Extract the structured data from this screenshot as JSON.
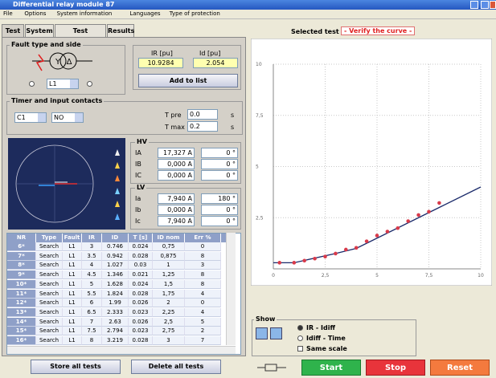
{
  "window": {
    "title": "Differential relay module 87"
  },
  "menu": [
    "File",
    "Options",
    "System information",
    "Languages",
    "Type of protection"
  ],
  "tabs": [
    "Test",
    "System",
    "Test Selection",
    "Results"
  ],
  "fault": {
    "title": "Fault type and side",
    "phase": "L1",
    "ir_label": "IR [pu]",
    "id_label": "Id [pu]",
    "ir_value": "10.9284",
    "id_value": "2.054",
    "add_button": "Add to list"
  },
  "timer": {
    "title": "Timer and input contacts",
    "contact": "C1",
    "contact_type": "NO",
    "tpre_label": "T pre",
    "tpre_value": "0.0",
    "tpre_unit": "s",
    "tmax_label": "T max",
    "tmax_value": "0.2",
    "tmax_unit": "s"
  },
  "hv": {
    "title": "HV",
    "rows": [
      [
        "IA",
        "17,327 A",
        "0 °"
      ],
      [
        "IB",
        "0,000 A",
        "0 °"
      ],
      [
        "IC",
        "0,000 A",
        "0 °"
      ]
    ]
  },
  "lv": {
    "title": "LV",
    "rows": [
      [
        "Ia",
        "7,940 A",
        "180 °"
      ],
      [
        "Ib",
        "0,000 A",
        "0 °"
      ],
      [
        "Ic",
        "7,940 A",
        "0 °"
      ]
    ]
  },
  "table": {
    "header": [
      "NR",
      "Type",
      "Fault",
      "IR",
      "ID",
      "T [s]",
      "ID nom",
      "Err %"
    ],
    "rows": [
      [
        "6*",
        "Search",
        "L1",
        "3",
        "0.746",
        "0.024",
        "0,75",
        "0"
      ],
      [
        "7*",
        "Search",
        "L1",
        "3.5",
        "0.942",
        "0.028",
        "0,875",
        "8"
      ],
      [
        "8*",
        "Search",
        "L1",
        "4",
        "1.027",
        "0.03",
        "1",
        "3"
      ],
      [
        "9*",
        "Search",
        "L1",
        "4.5",
        "1.346",
        "0.021",
        "1,25",
        "8"
      ],
      [
        "10*",
        "Search",
        "L1",
        "5",
        "1.628",
        "0.024",
        "1,5",
        "8"
      ],
      [
        "11*",
        "Search",
        "L1",
        "5.5",
        "1.824",
        "0.028",
        "1,75",
        "4"
      ],
      [
        "12*",
        "Search",
        "L1",
        "6",
        "1.99",
        "0.026",
        "2",
        "0"
      ],
      [
        "13*",
        "Search",
        "L1",
        "6.5",
        "2.333",
        "0.023",
        "2,25",
        "4"
      ],
      [
        "14*",
        "Search",
        "L1",
        "7",
        "2.63",
        "0.026",
        "2,5",
        "5"
      ],
      [
        "15*",
        "Search",
        "L1",
        "7.5",
        "2.794",
        "0.023",
        "2,75",
        "2"
      ],
      [
        "16*",
        "Search",
        "L1",
        "8",
        "3.219",
        "0.028",
        "3",
        "7"
      ]
    ]
  },
  "buttons": {
    "store": "Store all tests",
    "delete": "Delete all tests",
    "start": "Start",
    "stop": "Stop",
    "reset": "Reset"
  },
  "selected": {
    "label": "Selected test",
    "value": "- Verify the curve -"
  },
  "show": {
    "title": "Show",
    "opt1": "IR - Idiff",
    "opt2": "Idiff - Time",
    "opt3": "Same scale"
  },
  "chart": {
    "type": "scatter",
    "xlim": [
      0,
      10
    ],
    "ylim": [
      0,
      10
    ],
    "xticks": [
      0,
      {
        "value": 2.5,
        "label": "2,5"
      },
      5,
      {
        "value": 7.5,
        "label": "7,5"
      },
      10
    ],
    "yticks": [
      {
        "value": 2.5,
        "label": "2,5"
      },
      5,
      {
        "value": 7.5,
        "label": "7,5"
      },
      10
    ],
    "points": {
      "color": "#d93a4a",
      "x": [
        0.3,
        1,
        1.5,
        2,
        2.5,
        3,
        3.5,
        4,
        4.5,
        5,
        5.5,
        6,
        6.5,
        7,
        7.5,
        8
      ],
      "y": [
        0.3,
        0.3,
        0.4,
        0.5,
        0.6,
        0.746,
        0.942,
        1.027,
        1.346,
        1.628,
        1.824,
        1.99,
        2.333,
        2.63,
        2.794,
        3.219
      ]
    },
    "curve": {
      "color": "#1a2a6a",
      "x": [
        0,
        1,
        3,
        4,
        8,
        10
      ],
      "y": [
        0.3,
        0.3,
        0.75,
        1,
        3,
        4
      ]
    }
  }
}
